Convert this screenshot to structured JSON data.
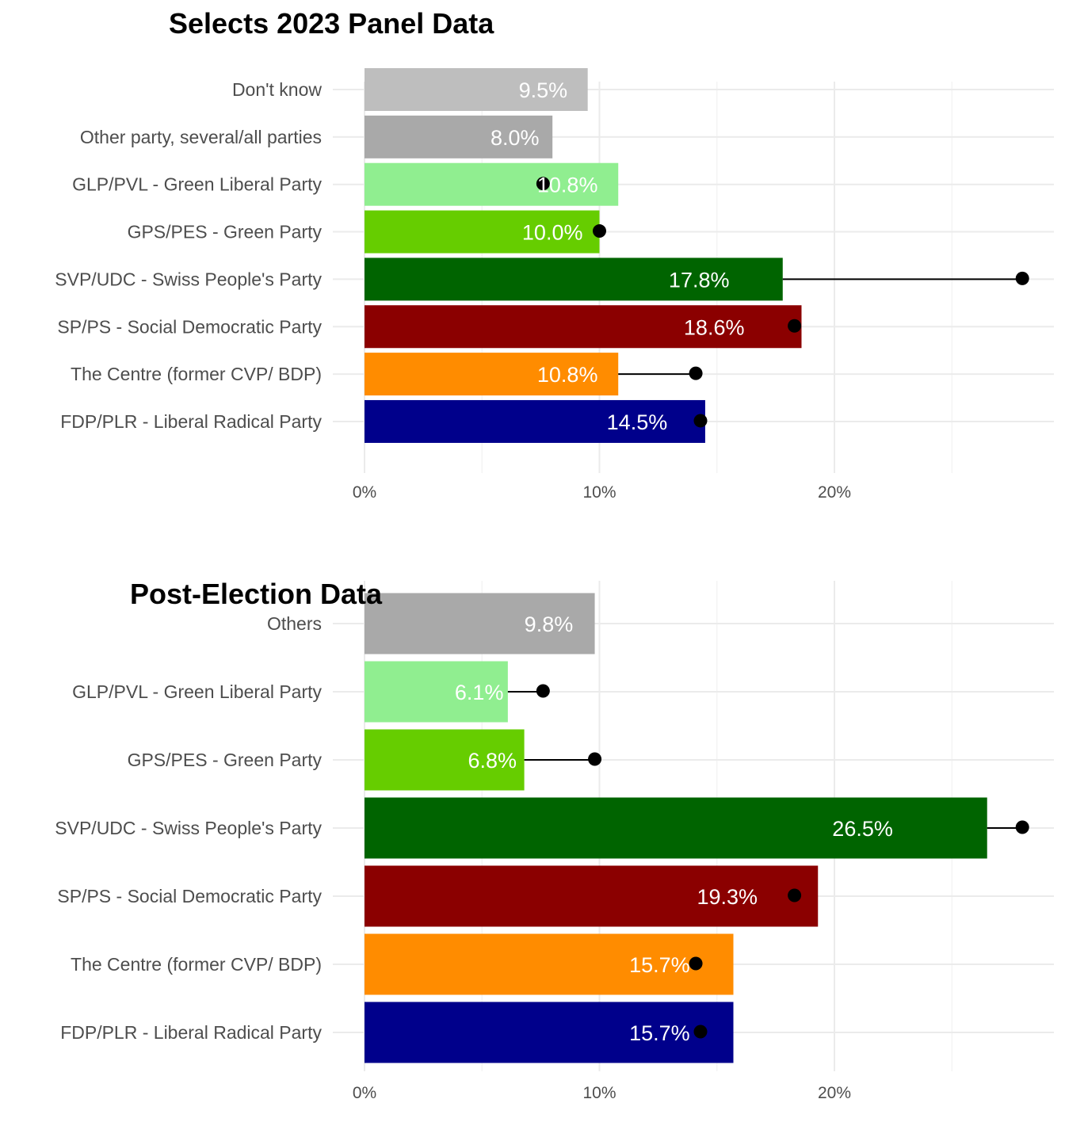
{
  "chart_data": [
    {
      "type": "bar",
      "title": "Selects 2023 Panel Data",
      "xlabel": "",
      "ylabel": "",
      "xlim": [
        0,
        29
      ],
      "x_ticks": [
        "0%",
        "10%",
        "20%"
      ],
      "x_tick_values": [
        0,
        10,
        20
      ],
      "grid": true,
      "categories": [
        "Don't know",
        "Other party, several/all parties",
        "GLP/PVL - Green Liberal Party",
        "GPS/PES - Green Party",
        "SVP/UDC - Swiss People's Party",
        "SP/PS - Social Democratic Party",
        "The Centre (former CVP/ BDP)",
        "FDP/PLR - Liberal Radical Party"
      ],
      "values": [
        9.5,
        8.0,
        10.8,
        10.0,
        17.8,
        18.6,
        10.8,
        14.5
      ],
      "labels": [
        "9.5%",
        "8.0%",
        "10.8%",
        "10.0%",
        "17.8%",
        "18.6%",
        "10.8%",
        "14.5%"
      ],
      "colors": [
        "#bebebe",
        "#a9a9a9",
        "#90ee90",
        "#66cd00",
        "#006400",
        "#8b0000",
        "#ff8c00",
        "#00008b"
      ],
      "reference_points": [
        null,
        null,
        7.6,
        10.0,
        28.0,
        18.3,
        14.1,
        14.3
      ]
    },
    {
      "type": "bar",
      "title": "Post-Election Data",
      "xlabel": "",
      "ylabel": "",
      "xlim": [
        0,
        29
      ],
      "x_ticks": [
        "0%",
        "10%",
        "20%"
      ],
      "x_tick_values": [
        0,
        10,
        20
      ],
      "grid": true,
      "categories": [
        "Others",
        "GLP/PVL - Green Liberal Party",
        "GPS/PES - Green Party",
        "SVP/UDC - Swiss People's Party",
        "SP/PS - Social Democratic Party",
        "The Centre (former CVP/ BDP)",
        "FDP/PLR - Liberal Radical Party"
      ],
      "values": [
        9.8,
        6.1,
        6.8,
        26.5,
        19.3,
        15.7,
        15.7
      ],
      "labels": [
        "9.8%",
        "6.1%",
        "6.8%",
        "26.5%",
        "19.3%",
        "15.7%",
        "15.7%"
      ],
      "colors": [
        "#a9a9a9",
        "#90ee90",
        "#66cd00",
        "#006400",
        "#8b0000",
        "#ff8c00",
        "#00008b"
      ],
      "reference_points": [
        null,
        7.6,
        9.8,
        28.0,
        18.3,
        14.1,
        14.3
      ]
    }
  ]
}
